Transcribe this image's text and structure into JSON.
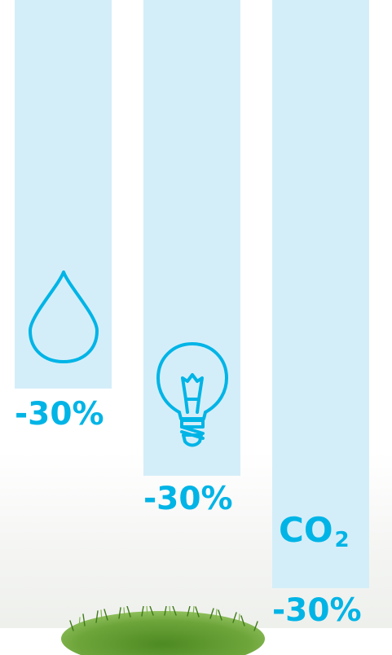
{
  "colors": {
    "bar_fill": "#d4eef9",
    "accent": "#00b4e6",
    "grass": "#5a8f2a",
    "background": "#ffffff"
  },
  "bars": [
    {
      "value_label": "-30%",
      "icon": "water-drop-icon"
    },
    {
      "value_label": "-30%",
      "icon": "light-bulb-icon"
    },
    {
      "value_label": "-30%",
      "icon": "co2-text-icon"
    }
  ],
  "co2": {
    "main": "CO",
    "sub": "2"
  }
}
